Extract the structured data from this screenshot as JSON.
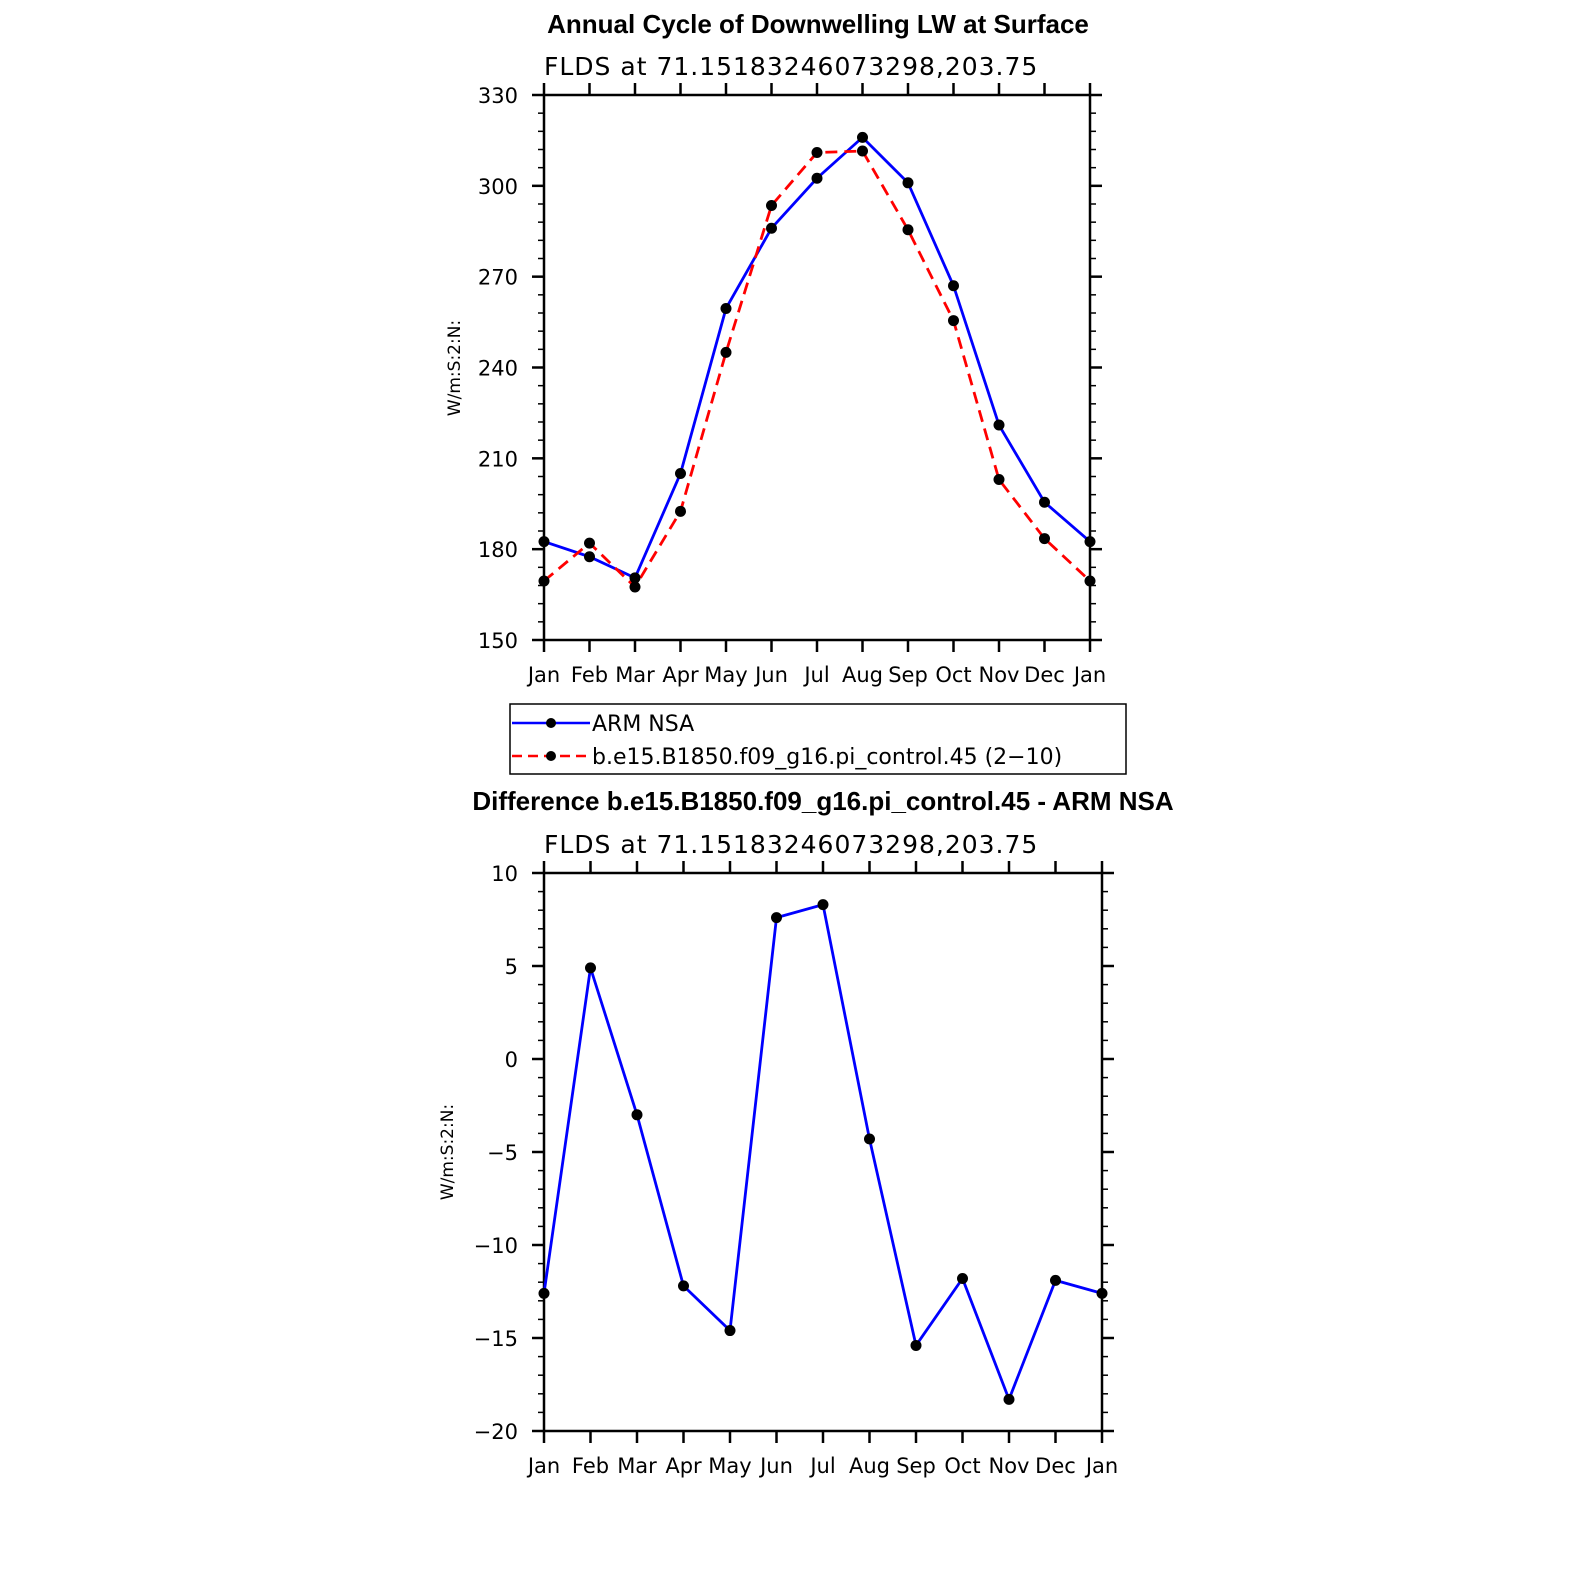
{
  "chart_data": [
    {
      "type": "line",
      "title": "Annual Cycle of Downwelling LW at Surface",
      "subtitle": "FLDS at 71.15183246073298,203.75",
      "ylabel": "W/m:S:2:N:",
      "xlabel": "",
      "categories": [
        "Jan",
        "Feb",
        "Mar",
        "Apr",
        "May",
        "Jun",
        "Jul",
        "Aug",
        "Sep",
        "Oct",
        "Nov",
        "Dec",
        "Jan"
      ],
      "ylim": [
        150,
        330
      ],
      "yticks": [
        150,
        180,
        210,
        240,
        270,
        300,
        330
      ],
      "series": [
        {
          "name": "ARM NSA",
          "color": "#0000ff",
          "dash": false,
          "values": [
            182.5,
            177.5,
            170.5,
            205,
            259.5,
            286,
            302.5,
            316,
            301,
            267,
            221,
            195.5,
            182.5
          ]
        },
        {
          "name": "b.e15.B1850.f09_g16.pi_control.45 (2−10)",
          "color": "#ff0000",
          "dash": true,
          "values": [
            169.5,
            182,
            167.5,
            192.5,
            245,
            293.5,
            311,
            311.5,
            285.5,
            255.5,
            203,
            183.5,
            169.5
          ]
        }
      ],
      "legend": "bottom",
      "grid": false
    },
    {
      "type": "line",
      "title": "Difference b.e15.B1850.f09_g16.pi_control.45 - ARM NSA",
      "subtitle": "FLDS at 71.15183246073298,203.75",
      "ylabel": "W/m:S:2:N:",
      "xlabel": "",
      "categories": [
        "Jan",
        "Feb",
        "Mar",
        "Apr",
        "May",
        "Jun",
        "Jul",
        "Aug",
        "Sep",
        "Oct",
        "Nov",
        "Dec",
        "Jan"
      ],
      "ylim": [
        -20,
        10
      ],
      "yticks": [
        -20,
        -15,
        -10,
        -5,
        0,
        5,
        10
      ],
      "ytick_labels": [
        "−20",
        "−15",
        "−10",
        "−5",
        "0",
        "5",
        "10"
      ],
      "series": [
        {
          "color": "#0000ff",
          "dash": false,
          "values": [
            -12.6,
            4.9,
            -3,
            -12.2,
            -14.6,
            7.6,
            8.3,
            -4.3,
            -15.4,
            -11.8,
            -18.3,
            -11.9,
            -12.6
          ]
        }
      ],
      "grid": false
    }
  ]
}
